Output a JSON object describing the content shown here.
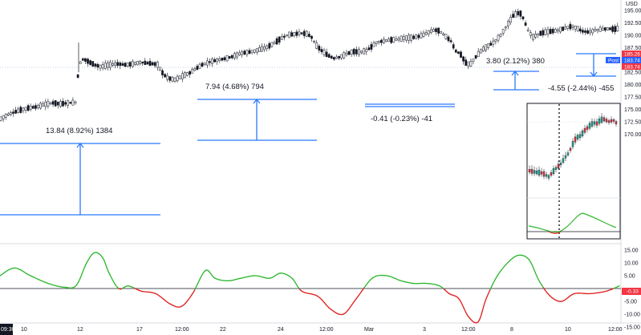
{
  "chart_data": {
    "type": "candlestick",
    "currency_label": "USD",
    "price_axis": {
      "ylim": [
        168.5,
        197.5
      ],
      "ticks": [
        "195.00",
        "192.50",
        "190.00",
        "187.50",
        "185.00",
        "182.50",
        "180.00",
        "177.50"
      ]
    },
    "time_axis": {
      "labels": [
        "10",
        "12",
        "17",
        "12:00",
        "22",
        "24",
        "12:00",
        "Mar",
        "3",
        "12:00",
        "8",
        "10",
        "12:00"
      ],
      "first_label": "09:30"
    },
    "price_tags": [
      {
        "text": "185.26",
        "color": "#f23645"
      },
      {
        "text": "Post",
        "color": "#2962ff"
      },
      {
        "text": "183.74",
        "color": "#2962ff"
      },
      {
        "text": "183.74",
        "color": "#f23645"
      }
    ],
    "candle_path": [
      [
        0,
        173.0
      ],
      [
        8,
        173.8
      ],
      [
        16,
        174.3
      ],
      [
        26,
        174.9
      ],
      [
        36,
        175.3
      ],
      [
        46,
        175.5
      ],
      [
        56,
        176.0
      ],
      [
        66,
        176.3
      ],
      [
        76,
        176.1
      ],
      [
        86,
        176.3
      ],
      [
        95,
        176.4
      ],
      [
        98,
        184.0
      ],
      [
        104,
        185.2
      ],
      [
        112,
        184.5
      ],
      [
        118,
        184.0
      ],
      [
        126,
        183.6
      ],
      [
        136,
        184.0
      ],
      [
        146,
        184.2
      ],
      [
        156,
        184.0
      ],
      [
        166,
        184.2
      ],
      [
        176,
        184.5
      ],
      [
        186,
        184.3
      ],
      [
        196,
        184.1
      ],
      [
        204,
        182.0
      ],
      [
        210,
        181.3
      ],
      [
        218,
        181.0
      ],
      [
        226,
        181.6
      ],
      [
        236,
        182.3
      ],
      [
        244,
        183.2
      ],
      [
        252,
        184.0
      ],
      [
        262,
        184.6
      ],
      [
        272,
        185.0
      ],
      [
        282,
        185.3
      ],
      [
        292,
        185.8
      ],
      [
        302,
        186.4
      ],
      [
        312,
        186.6
      ],
      [
        322,
        187.0
      ],
      [
        332,
        187.5
      ],
      [
        342,
        188.4
      ],
      [
        350,
        189.3
      ],
      [
        358,
        190.0
      ],
      [
        366,
        190.2
      ],
      [
        374,
        190.4
      ],
      [
        382,
        190.3
      ],
      [
        388,
        189.7
      ],
      [
        394,
        188.0
      ],
      [
        400,
        187.0
      ],
      [
        408,
        186.0
      ],
      [
        416,
        185.3
      ],
      [
        424,
        185.6
      ],
      [
        432,
        186.2
      ],
      [
        440,
        186.7
      ],
      [
        448,
        186.6
      ],
      [
        456,
        186.8
      ],
      [
        462,
        187.5
      ],
      [
        470,
        188.6
      ],
      [
        478,
        188.8
      ],
      [
        486,
        189.0
      ],
      [
        494,
        189.1
      ],
      [
        504,
        189.4
      ],
      [
        514,
        189.5
      ],
      [
        524,
        189.8
      ],
      [
        532,
        190.4
      ],
      [
        540,
        191.0
      ],
      [
        546,
        191.0
      ],
      [
        554,
        190.0
      ],
      [
        562,
        188.8
      ],
      [
        568,
        186.8
      ],
      [
        574,
        186.2
      ],
      [
        580,
        184.5
      ],
      [
        586,
        184.0
      ],
      [
        592,
        185.4
      ],
      [
        600,
        186.9
      ],
      [
        608,
        187.8
      ],
      [
        616,
        188.6
      ],
      [
        624,
        190.0
      ],
      [
        632,
        192.0
      ],
      [
        640,
        194.0
      ],
      [
        648,
        194.6
      ],
      [
        652,
        193.5
      ],
      [
        658,
        191.0
      ],
      [
        664,
        189.6
      ],
      [
        672,
        190.3
      ],
      [
        680,
        190.6
      ],
      [
        688,
        190.8
      ],
      [
        696,
        191.0
      ],
      [
        704,
        191.4
      ],
      [
        712,
        191.8
      ],
      [
        718,
        191.5
      ],
      [
        726,
        190.8
      ],
      [
        734,
        190.6
      ],
      [
        742,
        191.0
      ],
      [
        750,
        191.2
      ],
      [
        758,
        191.3
      ],
      [
        766,
        191.2
      ],
      [
        772,
        191.4
      ]
    ],
    "annotations": [
      {
        "text": "13.84 (8.92%) 1384",
        "x": 57,
        "y": 166
      },
      {
        "text": "7.94 (4.68%) 794",
        "x": 256,
        "y": 111
      },
      {
        "text": "-0.41 (-0.23%) -41",
        "x": 462,
        "y": 151
      },
      {
        "text": "3.80 (2.12%) 380",
        "x": 606,
        "y": 79
      },
      {
        "text": "-4.55 (-2.44%) -455",
        "x": 683,
        "y": 113
      }
    ],
    "measure_lines_color": "#2979ff",
    "inset": {
      "title": "",
      "candle_path": [
        [
          0,
          0.2
        ],
        [
          8,
          0.18
        ],
        [
          16,
          0.17
        ],
        [
          24,
          0.12
        ],
        [
          32,
          0.22
        ],
        [
          40,
          0.3
        ],
        [
          44,
          0.37
        ],
        [
          48,
          0.42
        ],
        [
          52,
          0.5
        ],
        [
          56,
          0.6
        ],
        [
          60,
          0.64
        ],
        [
          64,
          0.66
        ],
        [
          68,
          0.72
        ],
        [
          72,
          0.76
        ],
        [
          76,
          0.8
        ],
        [
          80,
          0.83
        ],
        [
          84,
          0.82
        ],
        [
          88,
          0.86
        ],
        [
          92,
          0.88
        ],
        [
          96,
          0.86
        ],
        [
          100,
          0.84
        ],
        [
          104,
          0.87
        ],
        [
          108,
          0.83
        ]
      ]
    },
    "oscillator": {
      "ylim": [
        -15,
        15
      ],
      "ticks": [
        "15.00",
        "10.00",
        "5.00",
        "-5.00",
        "-10.00",
        "-15.00"
      ],
      "current_value": "-0.33",
      "current_value_color": "#f23645",
      "series": [
        {
          "color_positive": "#2eb82e",
          "color_negative": "#e02020",
          "points": [
            [
              0,
              5
            ],
            [
              18,
              8
            ],
            [
              38,
              5
            ],
            [
              60,
              2
            ],
            [
              80,
              0.5
            ],
            [
              95,
              1.2
            ],
            [
              108,
              10
            ],
            [
              118,
              14
            ],
            [
              128,
              12
            ],
            [
              136,
              6
            ],
            [
              148,
              0
            ],
            [
              160,
              1
            ],
            [
              176,
              -1
            ],
            [
              194,
              -2
            ],
            [
              212,
              -6
            ],
            [
              226,
              -7
            ],
            [
              240,
              -2
            ],
            [
              256,
              7
            ],
            [
              268,
              4
            ],
            [
              284,
              3
            ],
            [
              300,
              4
            ],
            [
              318,
              5
            ],
            [
              336,
              4
            ],
            [
              350,
              6
            ],
            [
              364,
              4
            ],
            [
              376,
              -1
            ],
            [
              396,
              -3
            ],
            [
              412,
              -8
            ],
            [
              428,
              -10
            ],
            [
              444,
              -4
            ],
            [
              464,
              4
            ],
            [
              482,
              5
            ],
            [
              500,
              3
            ],
            [
              516,
              2
            ],
            [
              532,
              2
            ],
            [
              548,
              1
            ],
            [
              560,
              -2
            ],
            [
              572,
              -4
            ],
            [
              584,
              -11
            ],
            [
              596,
              -13
            ],
            [
              606,
              -4
            ],
            [
              620,
              5
            ],
            [
              636,
              11
            ],
            [
              648,
              13
            ],
            [
              660,
              11
            ],
            [
              672,
              3
            ],
            [
              686,
              -3
            ],
            [
              700,
              -5
            ],
            [
              716,
              -2
            ],
            [
              736,
              -2
            ],
            [
              756,
              -1
            ],
            [
              772,
              1
            ]
          ]
        }
      ]
    }
  }
}
